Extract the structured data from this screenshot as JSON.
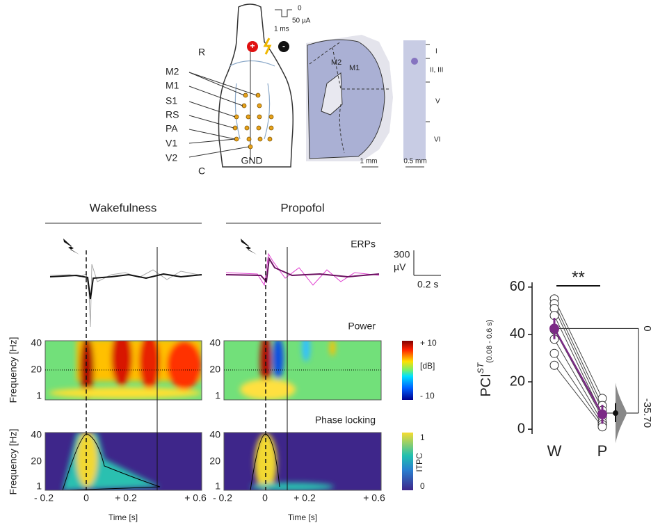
{
  "diagram": {
    "stimulus": {
      "zero": "0",
      "amplitude": "50 µA",
      "duration": "1 ms"
    },
    "orientation": {
      "rostral": "R",
      "caudal": "C"
    },
    "electrodes": [
      "+",
      "-"
    ],
    "areas": [
      "M2",
      "M1",
      "S1",
      "RS",
      "PA",
      "V1",
      "V2"
    ],
    "ground": "GND",
    "section_labels": [
      "M2",
      "M1"
    ],
    "scale_bars": [
      "1 mm",
      "0.5 mm"
    ],
    "layers": [
      "I",
      "II, III",
      "V",
      "VI"
    ]
  },
  "spectral": {
    "conditions": [
      "Wakefulness",
      "Propofol"
    ],
    "erp_label": "ERPs",
    "erp_scale": {
      "amplitude": "300",
      "unit": "µV",
      "time": "0.2 s"
    },
    "power_label": "Power",
    "phase_label": "Phase locking",
    "y_label": "Frequency [Hz]",
    "y_ticks": [
      "40",
      "20",
      "1"
    ],
    "x_ticks": [
      "- 0.2",
      "0",
      "+ 0.2",
      "+ 0.6"
    ],
    "x_label": "Time [s]",
    "power_colorbar": [
      "+ 10",
      "[dB]",
      "- 10"
    ],
    "itpc_colorbar": [
      "1",
      "ITPC",
      "0"
    ]
  },
  "chart_data": {
    "type": "paired-dot",
    "ylabel": "PCI",
    "ylabel_sup": "ST",
    "ylabel_sub": "(0.08 - 0.6 s)",
    "categories": [
      "W",
      "P"
    ],
    "ylim": [
      -2,
      62
    ],
    "yticks": [
      0,
      20,
      40,
      60
    ],
    "y2lim": [
      -44.5,
      19.5
    ],
    "y2ticks": [
      0,
      {
        "value": -35.7,
        "label": "-35.70"
      }
    ],
    "series": [
      {
        "color": "#ffffff",
        "values": [
          55,
          13
        ]
      },
      {
        "color": "#ffffff",
        "values": [
          53,
          10
        ]
      },
      {
        "color": "#ffffff",
        "values": [
          51,
          8
        ]
      },
      {
        "color": "#ffffff",
        "values": [
          48,
          6
        ]
      },
      {
        "color": "#ffffff",
        "values": [
          42,
          5
        ]
      },
      {
        "color": "#ffffff",
        "values": [
          38,
          3
        ]
      },
      {
        "color": "#ffffff",
        "values": [
          32,
          2
        ]
      },
      {
        "color": "#ffffff",
        "values": [
          27,
          1
        ]
      }
    ],
    "mean": {
      "color": "#7b2a85",
      "values": [
        42.5,
        6.3
      ],
      "errors": [
        4.5,
        4
      ]
    },
    "effect": -35.7,
    "effect_ci": [
      -39.5,
      -31.5
    ],
    "annotation": "**"
  }
}
